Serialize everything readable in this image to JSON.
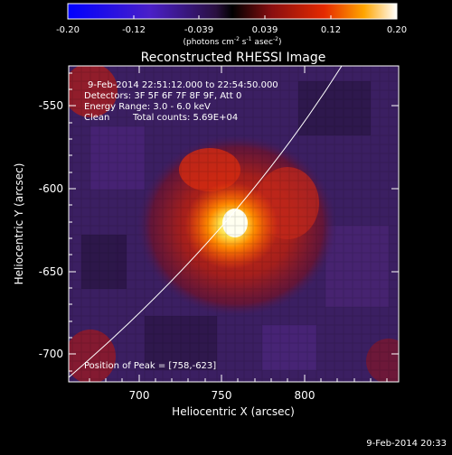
{
  "colorbar": {
    "ticks": [
      "-0.20",
      "-0.12",
      "-0.039",
      "0.039",
      "0.12",
      "0.20"
    ],
    "units_prefix": "(photons cm",
    "units_exp1": "-2",
    "units_mid": " s",
    "units_exp2": "-1",
    "units_mid2": " asec",
    "units_exp3": "-2",
    "units_suffix": ")"
  },
  "plot": {
    "title": "Reconstructed RHESSI Image",
    "time_range": "9-Feb-2014 22:51:12.000 to 22:54:50.000",
    "detectors": "Detectors: 3F 5F 6F 7F 8F 9F, Att 0",
    "energy": "Energy Range: 3.0 - 6.0 keV",
    "method": "Clean",
    "counts": "Total counts: 5.69E+04",
    "peak": "Position of Peak = [758,-623]",
    "xlabel": "Heliocentric X (arcsec)",
    "ylabel": "Heliocentric Y (arcsec)",
    "xticks": [
      "700",
      "750",
      "800"
    ],
    "yticks": [
      "-550",
      "-600",
      "-650",
      "-700"
    ]
  },
  "footer": {
    "timestamp": "9-Feb-2014 20:33"
  },
  "colors": {
    "background": "#000000",
    "halo": "#a8201a",
    "core": "#ffffc0",
    "negative": "#3c1f64"
  }
}
